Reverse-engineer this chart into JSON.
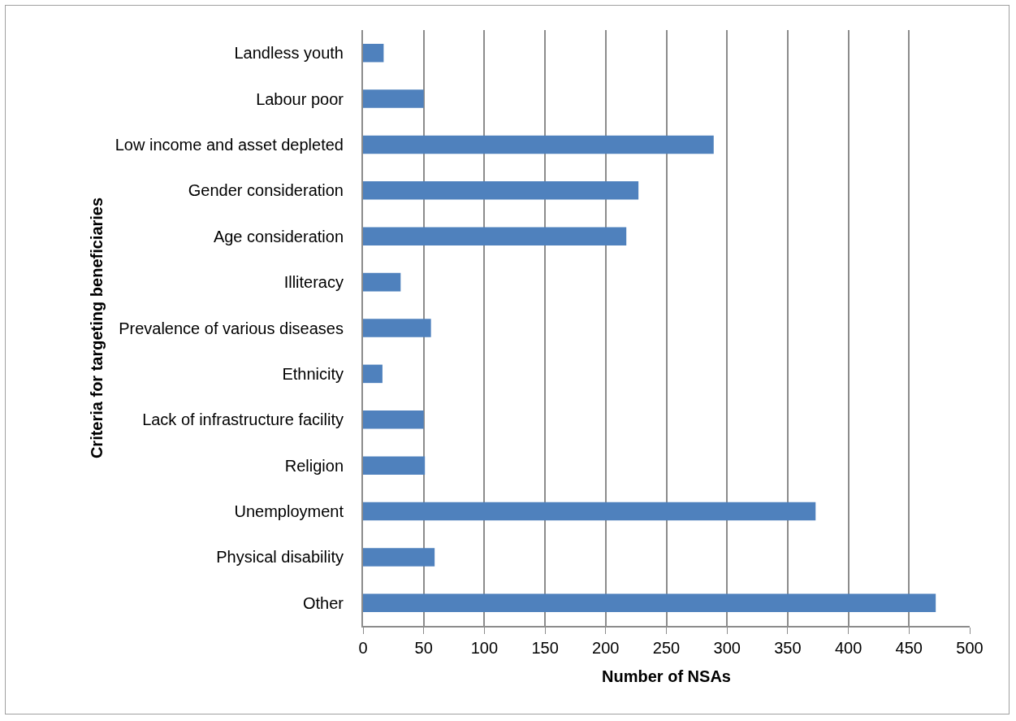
{
  "chart_data": {
    "type": "bar",
    "orientation": "horizontal",
    "xlabel": "Number of NSAs",
    "ylabel": "Criteria for targeting beneficiaries",
    "categories": [
      "Landless youth",
      "Labour poor",
      "Low income and asset depleted",
      "Gender consideration",
      "Age consideration",
      "Illiteracy",
      "Prevalence of various diseases",
      "Ethnicity",
      "Lack of infrastructure facility",
      "Religion",
      "Unemployment",
      "Physical disability",
      "Other"
    ],
    "values": [
      17,
      50,
      289,
      227,
      217,
      31,
      56,
      16,
      50,
      51,
      373,
      59,
      472
    ],
    "color": "#4f81bd",
    "xlim": [
      0,
      500
    ],
    "xticks": [
      0,
      50,
      100,
      150,
      200,
      250,
      300,
      350,
      400,
      450,
      500
    ],
    "grid": "x",
    "legend": false
  }
}
